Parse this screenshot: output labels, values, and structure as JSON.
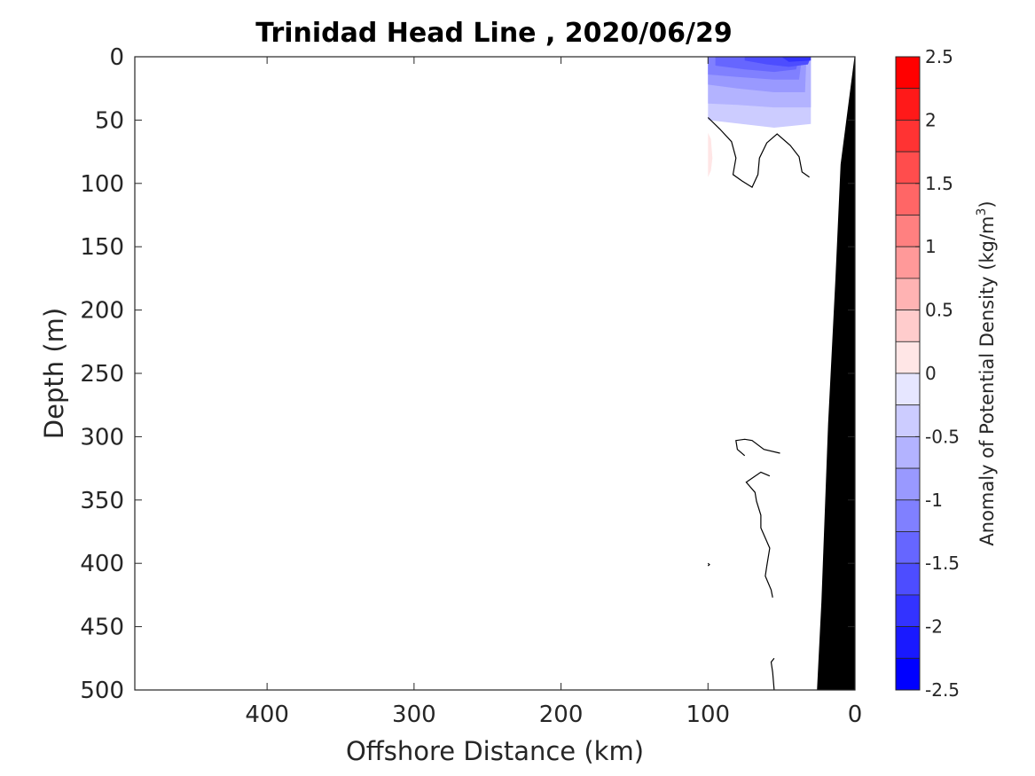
{
  "chart_data": {
    "type": "heatmap",
    "title": "Trinidad Head Line , 2020/06/29",
    "xlabel": "Offshore Distance (km)",
    "ylabel": "Depth (m)",
    "x_reversed": true,
    "y_reversed": true,
    "xlim": [
      490,
      0
    ],
    "ylim": [
      0,
      500
    ],
    "xticks": [
      400,
      300,
      200,
      100,
      0
    ],
    "yticks": [
      0,
      50,
      100,
      150,
      200,
      250,
      300,
      350,
      400,
      450,
      500
    ],
    "xtick_labels": [
      "400",
      "300",
      "200",
      "100",
      "0"
    ],
    "ytick_labels": [
      "0",
      "50",
      "100",
      "150",
      "200",
      "250",
      "300",
      "350",
      "400",
      "450",
      "500"
    ],
    "colorbar": {
      "label": "Anomaly of Potential Density (kg/m",
      "label_sup": "3",
      "label_end": ")",
      "range": [
        -2.5,
        2.5
      ],
      "step": 0.25,
      "ticks": [
        2.5,
        2,
        1.5,
        1,
        0.5,
        0,
        -0.5,
        -1,
        -1.5,
        -2,
        -2.5
      ],
      "tick_labels": [
        "2.5",
        "2",
        "1.5",
        "1",
        "0.5",
        "0",
        "-0.5",
        "-1",
        "-1.5",
        "-2",
        "-2.5"
      ],
      "colors": {
        "positive_max": "#ff0000",
        "negative_max": "#0000ff",
        "neutral": "#ffffff"
      }
    },
    "anomaly_patches": [
      {
        "value": -0.5,
        "polygon": [
          [
            100,
            0
          ],
          [
            30,
            0
          ],
          [
            30,
            53
          ],
          [
            55,
            56
          ],
          [
            100,
            50
          ]
        ]
      },
      {
        "value": -0.75,
        "polygon": [
          [
            100,
            0
          ],
          [
            30,
            0
          ],
          [
            30,
            40
          ],
          [
            55,
            40
          ],
          [
            80,
            38
          ],
          [
            100,
            37
          ]
        ]
      },
      {
        "value": -1.0,
        "polygon": [
          [
            100,
            0
          ],
          [
            33,
            0
          ],
          [
            34,
            28
          ],
          [
            55,
            28
          ],
          [
            80,
            25
          ],
          [
            100,
            22
          ]
        ]
      },
      {
        "value": -1.25,
        "polygon": [
          [
            100,
            0
          ],
          [
            36,
            0
          ],
          [
            38,
            18
          ],
          [
            55,
            18
          ],
          [
            80,
            16
          ],
          [
            100,
            14
          ]
        ]
      },
      {
        "value": -1.5,
        "polygon": [
          [
            95,
            0
          ],
          [
            38,
            0
          ],
          [
            40,
            10
          ],
          [
            55,
            12
          ],
          [
            75,
            10
          ],
          [
            95,
            7
          ]
        ]
      },
      {
        "value": -1.75,
        "polygon": [
          [
            75,
            0
          ],
          [
            30,
            0
          ],
          [
            32,
            6
          ],
          [
            45,
            8
          ],
          [
            60,
            6
          ],
          [
            75,
            3
          ]
        ]
      },
      {
        "value": -2.0,
        "polygon": [
          [
            50,
            0
          ],
          [
            30,
            0
          ],
          [
            30,
            3
          ],
          [
            45,
            4
          ]
        ]
      },
      {
        "value": 0.25,
        "polygon": [
          [
            100,
            60
          ],
          [
            98,
            65
          ],
          [
            97,
            80
          ],
          [
            98,
            90
          ],
          [
            100,
            95
          ]
        ]
      }
    ],
    "zero_contours": [
      [
        [
          100,
          48
        ],
        [
          92,
          57
        ],
        [
          84,
          67
        ],
        [
          81,
          80
        ],
        [
          83,
          93
        ],
        [
          77,
          98
        ],
        [
          70,
          103
        ],
        [
          66,
          93
        ],
        [
          65,
          80
        ],
        [
          60,
          68
        ],
        [
          53,
          61
        ],
        [
          44,
          70
        ],
        [
          38,
          79
        ],
        [
          36,
          91
        ],
        [
          31,
          95
        ]
      ],
      [
        [
          75,
          315
        ],
        [
          80,
          310
        ],
        [
          81,
          303
        ],
        [
          75,
          302
        ],
        [
          70,
          303
        ],
        [
          62,
          310
        ],
        [
          51,
          313
        ]
      ],
      [
        [
          58,
          331
        ],
        [
          64,
          328
        ],
        [
          74,
          336
        ],
        [
          68,
          344
        ],
        [
          67,
          351
        ],
        [
          64,
          362
        ],
        [
          64,
          372
        ],
        [
          61,
          380
        ],
        [
          58,
          388
        ],
        [
          60,
          402
        ],
        [
          61,
          410
        ],
        [
          57,
          421
        ],
        [
          56,
          427
        ]
      ],
      [
        [
          100,
          400
        ],
        [
          99,
          401
        ],
        [
          100,
          402
        ]
      ],
      [
        [
          55,
          475
        ],
        [
          57,
          478
        ],
        [
          56,
          486
        ],
        [
          55,
          500
        ]
      ]
    ],
    "bathymetry": {
      "color": "#000000",
      "profile": [
        [
          0,
          0
        ],
        [
          9.5,
          85
        ],
        [
          13,
          175
        ],
        [
          18,
          290
        ],
        [
          22.5,
          430
        ],
        [
          25.5,
          500
        ]
      ]
    }
  }
}
